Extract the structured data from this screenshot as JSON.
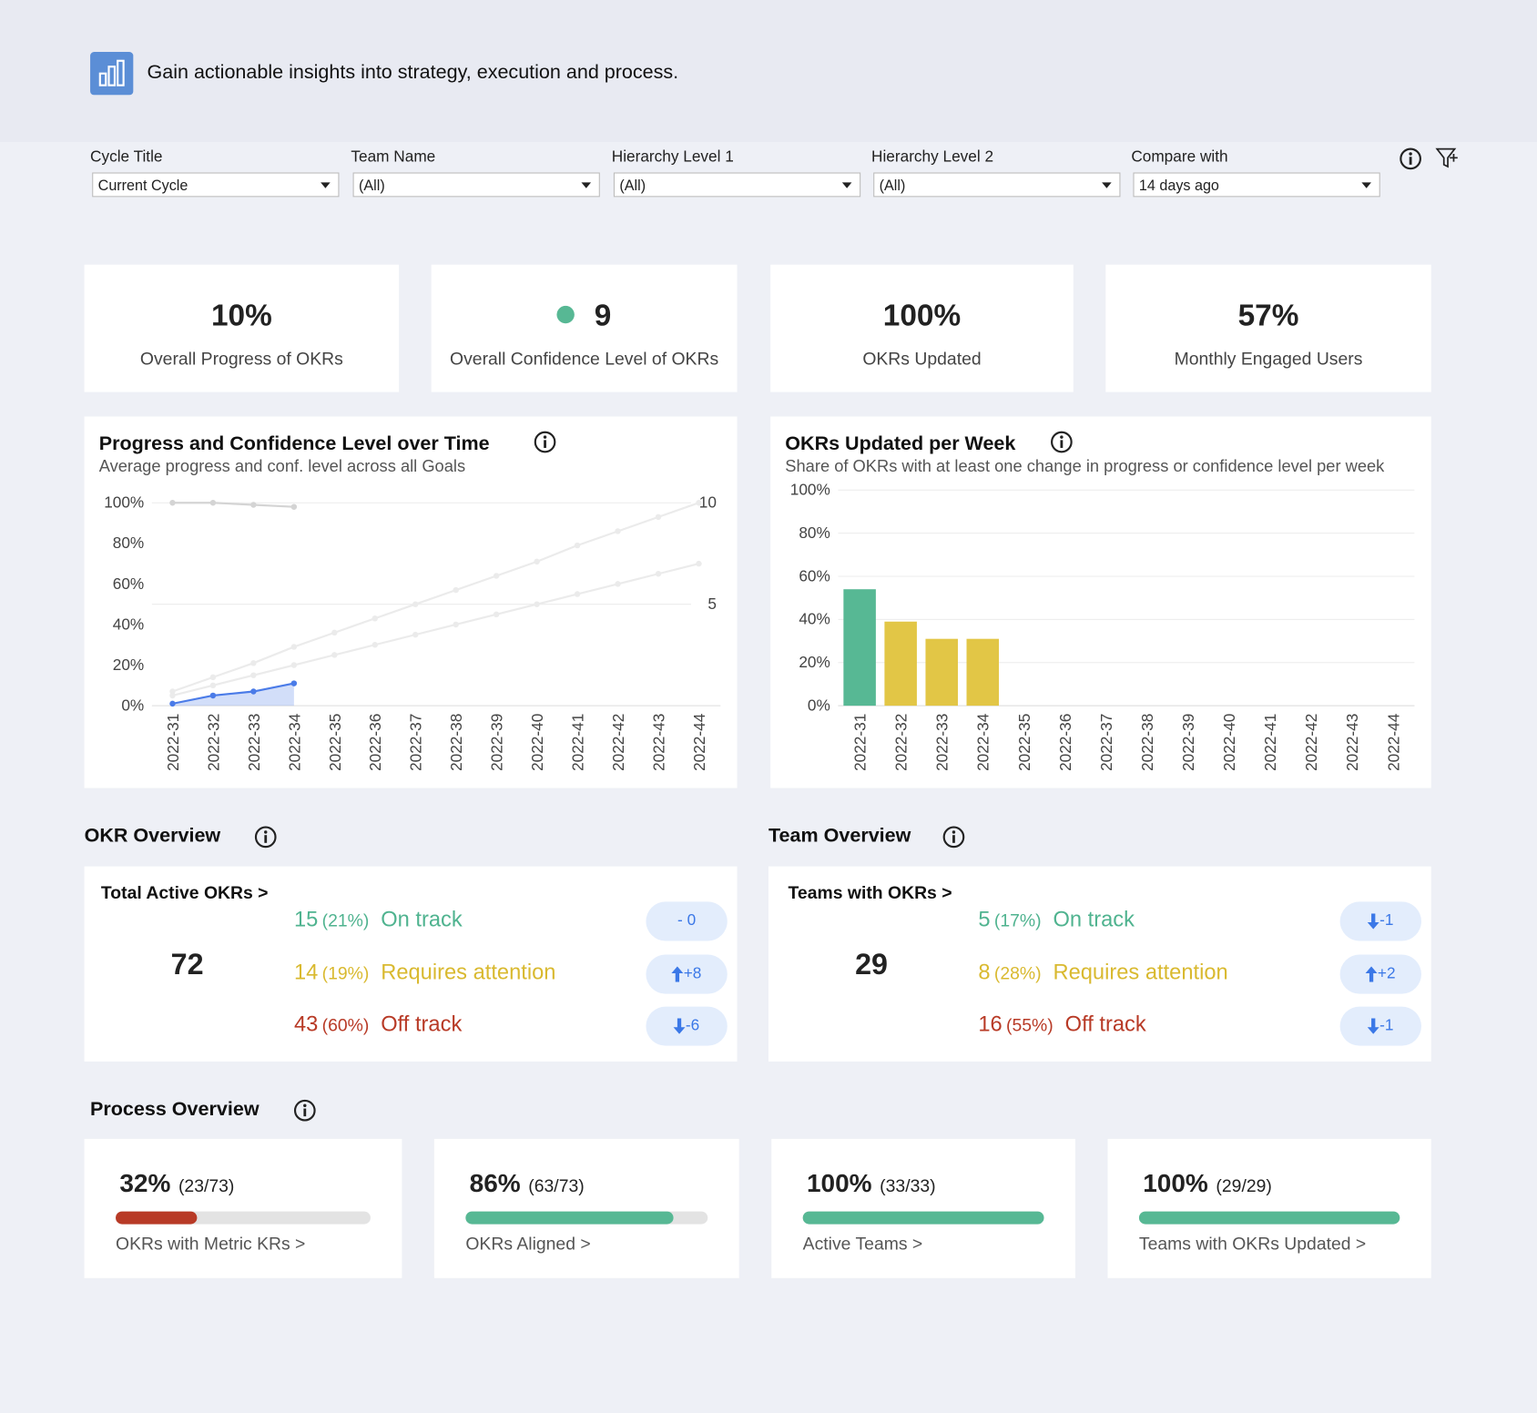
{
  "header": {
    "text": "Gain actionable insights into strategy, execution and process."
  },
  "filters": [
    {
      "label": "Cycle Title",
      "value": "Current Cycle"
    },
    {
      "label": "Team Name",
      "value": "(All)"
    },
    {
      "label": "Hierarchy Level 1",
      "value": "(All)"
    },
    {
      "label": "Hierarchy Level 2",
      "value": "(All)"
    },
    {
      "label": "Compare with",
      "value": "14 days ago"
    }
  ],
  "kpis": [
    {
      "value": "10%",
      "label": "Overall Progress of OKRs"
    },
    {
      "value": "9",
      "label": "Overall Confidence Level of OKRs",
      "dot_color": "#57b894"
    },
    {
      "value": "100%",
      "label": "OKRs Updated"
    },
    {
      "value": "57%",
      "label": "Monthly Engaged Users"
    }
  ],
  "chart_data": [
    {
      "type": "line",
      "title": "Progress and Confidence Level over Time",
      "subtitle": "Average progress and conf. level across all Goals",
      "categories": [
        "2022-31",
        "2022-32",
        "2022-33",
        "2022-34",
        "2022-35",
        "2022-36",
        "2022-37",
        "2022-38",
        "2022-39",
        "2022-40",
        "2022-41",
        "2022-42",
        "2022-43",
        "2022-44"
      ],
      "ylim": [
        0,
        100
      ],
      "yticks": [
        {
          "value": 0,
          "label": "0%"
        },
        {
          "value": 20,
          "label": "20%"
        },
        {
          "value": 40,
          "label": "40%"
        },
        {
          "value": 60,
          "label": "60%"
        },
        {
          "value": 80,
          "label": "80%"
        },
        {
          "value": 100,
          "label": "100%"
        }
      ],
      "y2lim": [
        0,
        10
      ],
      "y2ticks": [
        5,
        10
      ],
      "grid": "y2",
      "series": [
        {
          "color": "#4a7be8",
          "area": true,
          "values": [
            1,
            5,
            7,
            11,
            null,
            null,
            null,
            null,
            null,
            null,
            null,
            null,
            null,
            null
          ]
        },
        {
          "color": "#d4d4d4",
          "axis": "y2",
          "values": [
            10,
            10,
            9.9,
            9.8,
            null,
            null,
            null,
            null,
            null,
            null,
            null,
            null,
            null,
            null
          ]
        },
        {
          "color": "#ebebeb",
          "axis": "y2",
          "values": [
            0.7,
            1.4,
            2.1,
            2.9,
            3.6,
            4.3,
            5.0,
            5.7,
            6.4,
            7.1,
            7.9,
            8.6,
            9.3,
            10.0
          ]
        },
        {
          "color": "#ebebeb",
          "axis": "y2",
          "values": [
            0.5,
            1.0,
            1.5,
            2.0,
            2.5,
            3.0,
            3.5,
            4.0,
            4.5,
            5.0,
            5.5,
            6.0,
            6.5,
            7.0
          ]
        }
      ]
    },
    {
      "type": "bar",
      "title": "OKRs Updated per Week",
      "subtitle": "Share of OKRs with at least one change in progress or confidence level per week",
      "categories": [
        "2022-31",
        "2022-32",
        "2022-33",
        "2022-34",
        "2022-35",
        "2022-36",
        "2022-37",
        "2022-38",
        "2022-39",
        "2022-40",
        "2022-41",
        "2022-42",
        "2022-43",
        "2022-44"
      ],
      "values": [
        54,
        39,
        31,
        31,
        null,
        null,
        null,
        null,
        null,
        null,
        null,
        null,
        null,
        null
      ],
      "colors": [
        "#57b894",
        "#e2c646",
        "#e2c646",
        "#e2c646",
        null,
        null,
        null,
        null,
        null,
        null,
        null,
        null,
        null,
        null
      ],
      "ylim": [
        0,
        100
      ],
      "yticks": [
        {
          "value": 0,
          "label": "0%"
        },
        {
          "value": 20,
          "label": "20%"
        },
        {
          "value": 40,
          "label": "40%"
        },
        {
          "value": 60,
          "label": "60%"
        },
        {
          "value": 80,
          "label": "80%"
        },
        {
          "value": 100,
          "label": "100%"
        }
      ],
      "grid": true
    }
  ],
  "overviews": [
    {
      "title": "OKR Overview",
      "total_label": "Total Active OKRs >",
      "total": "72",
      "rows": [
        {
          "count": "15",
          "share": "(21%)",
          "status": "On track",
          "color": "#4fb38f",
          "delta": "- 0",
          "trend": "none"
        },
        {
          "count": "14",
          "share": "(19%)",
          "status": "Requires attention",
          "color": "#d9b92f",
          "delta": "+8",
          "trend": "up"
        },
        {
          "count": "43",
          "share": "(60%)",
          "status": "Off track",
          "color": "#b83a26",
          "delta": "-6",
          "trend": "down"
        }
      ]
    },
    {
      "title": "Team Overview",
      "total_label": "Teams with OKRs >",
      "total": "29",
      "rows": [
        {
          "count": "5",
          "share": "(17%)",
          "status": "On track",
          "color": "#4fb38f",
          "delta": "-1",
          "trend": "down"
        },
        {
          "count": "8",
          "share": "(28%)",
          "status": "Requires attention",
          "color": "#d9b92f",
          "delta": "+2",
          "trend": "up"
        },
        {
          "count": "16",
          "share": "(55%)",
          "status": "Off track",
          "color": "#b83a26",
          "delta": "-1",
          "trend": "down"
        }
      ]
    }
  ],
  "process": {
    "title": "Process Overview",
    "items": [
      {
        "percent": 32,
        "percent_label": "32%",
        "detail": "(23/73)",
        "label": "OKRs with Metric KRs >",
        "color": "#b83a26"
      },
      {
        "percent": 86,
        "percent_label": "86%",
        "detail": "(63/73)",
        "label": "OKRs Aligned >",
        "color": "#57b894"
      },
      {
        "percent": 100,
        "percent_label": "100%",
        "detail": "(33/33)",
        "label": "Active Teams >",
        "color": "#57b894"
      },
      {
        "percent": 100,
        "percent_label": "100%",
        "detail": "(29/29)",
        "label": "Teams with OKRs Updated >",
        "color": "#57b894"
      }
    ]
  }
}
